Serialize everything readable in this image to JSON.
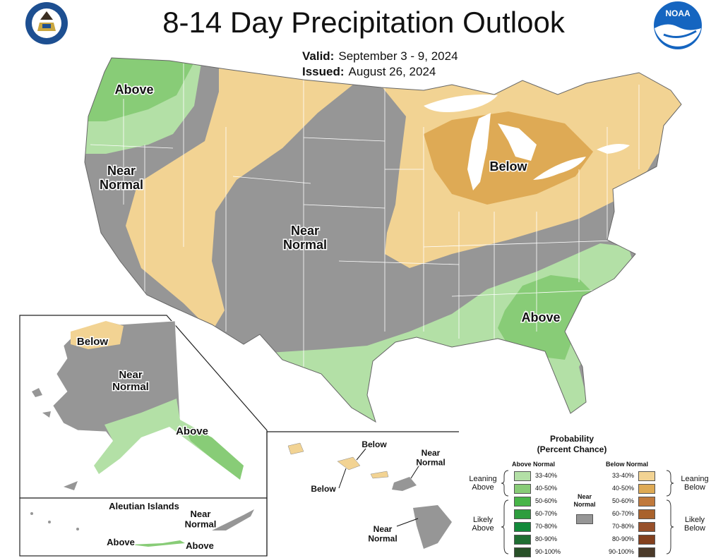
{
  "header": {
    "title": "8-14 Day Precipitation Outlook",
    "valid_label": "Valid:",
    "valid_value": "September 3 - 9, 2024",
    "issued_label": "Issued:",
    "issued_value": "August 26, 2024"
  },
  "logos": {
    "commerce_seal": "Department of Commerce seal",
    "commerce_seal_text": "DEPARTMENT OF COMMERCE · UNITED STATES OF AMERICA",
    "noaa": "NOAA"
  },
  "map": {
    "conus_labels": {
      "above_nw": "Above",
      "near_normal_w": "Near Normal",
      "near_normal_c": "Near Normal",
      "below_glakes": "Below",
      "above_se": "Above"
    },
    "alaska_labels": {
      "below": "Below",
      "near_normal": "Near Normal",
      "above": "Above"
    },
    "aleutian": {
      "title": "Aleutian Islands",
      "near_normal": "Near Normal",
      "above_1": "Above",
      "above_2": "Above"
    },
    "hawaii_labels": {
      "below_1": "Below",
      "below_2": "Below",
      "near_normal_1": "Near Normal",
      "near_normal_2": "Near Normal"
    }
  },
  "colors": {
    "near_normal": "#969696",
    "leaning_above": "#b3e0a6",
    "above_40_50": "#88cc77",
    "leaning_below": "#f2d393",
    "below_40_50": "#deaa55",
    "state_line": "#ffffff"
  },
  "legend": {
    "title_1": "Probability",
    "title_2": "(Percent Chance)",
    "above_header": "Above Normal",
    "below_header": "Below Normal",
    "leaning_above": "Leaning Above",
    "likely_above": "Likely Above",
    "near_normal": "Near Normal",
    "leaning_below": "Leaning Below",
    "likely_below": "Likely Below",
    "above_swatches": [
      {
        "label": "33-40%",
        "color": "#b3e0a6"
      },
      {
        "label": "40-50%",
        "color": "#88cc77"
      },
      {
        "label": "50-60%",
        "color": "#48b548"
      },
      {
        "label": "60-70%",
        "color": "#2e9d3e"
      },
      {
        "label": "70-80%",
        "color": "#128a3a"
      },
      {
        "label": "80-90%",
        "color": "#1f6e32"
      },
      {
        "label": "90-100%",
        "color": "#285028"
      }
    ],
    "below_swatches": [
      {
        "label": "33-40%",
        "color": "#f2d393"
      },
      {
        "label": "40-50%",
        "color": "#deaa55"
      },
      {
        "label": "50-60%",
        "color": "#c0793c"
      },
      {
        "label": "60-70%",
        "color": "#a9622c"
      },
      {
        "label": "70-80%",
        "color": "#98502a"
      },
      {
        "label": "80-90%",
        "color": "#83401e"
      },
      {
        "label": "90-100%",
        "color": "#4b3a2a"
      }
    ],
    "near_swatch_color": "#969696"
  }
}
